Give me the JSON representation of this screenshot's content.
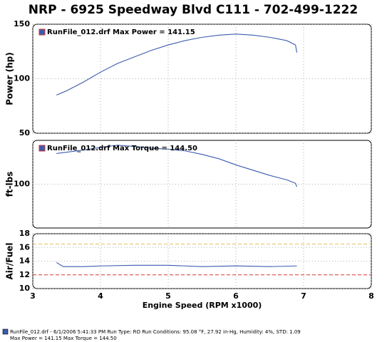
{
  "header": {
    "title": "NRP - 6925 Speedway Blvd C111 - 702-499-1222"
  },
  "chart_data": [
    {
      "type": "line",
      "y_label": "Power (hp)",
      "xlim": [
        3,
        8
      ],
      "ylim": [
        50,
        150
      ],
      "yticks": [
        50,
        100,
        150
      ],
      "grid": true,
      "series": [
        {
          "name": "RunFile_012.drf Max Power = 141.15",
          "color": "#3a5cae",
          "x": [
            3.35,
            3.5,
            3.75,
            4,
            4.25,
            4.5,
            4.75,
            5,
            5.25,
            5.5,
            5.75,
            6,
            6.25,
            6.5,
            6.75,
            6.88,
            6.9
          ],
          "values": [
            85,
            89,
            97,
            106,
            114,
            120,
            126,
            131,
            135,
            138,
            140,
            141,
            140,
            138,
            135,
            131,
            124
          ]
        }
      ]
    },
    {
      "type": "line",
      "y_label": "ft-lbs",
      "xlim": [
        3,
        8
      ],
      "ylim": [
        50,
        150
      ],
      "yticks": [
        100
      ],
      "grid": true,
      "series": [
        {
          "name": "RunFile_012.drf Max Torque = 144.50",
          "color": "#3a5cae",
          "x": [
            3.35,
            3.75,
            4,
            4.25,
            4.5,
            4.75,
            5,
            5.25,
            5.5,
            5.75,
            6,
            6.25,
            6.5,
            6.75,
            6.88,
            6.9
          ],
          "values": [
            135,
            139,
            142,
            144.5,
            143,
            141,
            140,
            138,
            134,
            129,
            122,
            116,
            110,
            105,
            101,
            97
          ]
        }
      ]
    },
    {
      "type": "line",
      "y_label": "Air/Fuel",
      "x_label": "Engine Speed (RPM x1000)",
      "xlim": [
        3,
        8
      ],
      "xticks": [
        3,
        4,
        5,
        6,
        7,
        8
      ],
      "ylim": [
        10,
        18
      ],
      "yticks": [
        10,
        12,
        14,
        16,
        18
      ],
      "grid": true,
      "reference_lines": [
        {
          "value": 12,
          "color": "#d83a3a"
        },
        {
          "value": 16.5,
          "color": "#e8c060"
        }
      ],
      "series": [
        {
          "color": "#3a5cae",
          "x": [
            3.35,
            3.45,
            3.75,
            4,
            4.5,
            5,
            5.5,
            6,
            6.5,
            6.9
          ],
          "values": [
            13.8,
            13.2,
            13.2,
            13.3,
            13.4,
            13.4,
            13.2,
            13.3,
            13.2,
            13.3
          ]
        }
      ]
    }
  ],
  "footer": {
    "line1": "RunFile_012.drf - 6/1/2006 5:41:33 PM  Run Type: RO  Run Conditions: 95.08 °F, 27.92 in-Hg,  Humidity:  4%, STD: 1.09",
    "line2": "Max Power = 141.15  Max Torque = 144.50"
  }
}
